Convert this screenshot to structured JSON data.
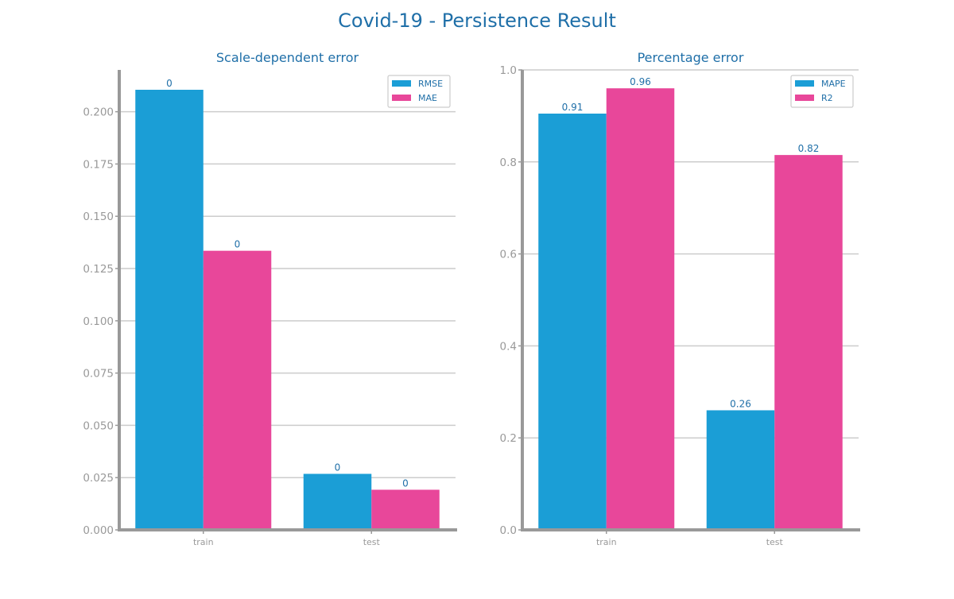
{
  "figure_title": "Covid-19 - Persistence Result",
  "colors": {
    "title": "#1f6fa8",
    "series_1": "#1b9ed6",
    "series_2": "#e8479a",
    "axis": "#999999",
    "grid": "#cccccc",
    "tick_text": "#999999",
    "value_label": "#1f6fa8"
  },
  "chart_data": [
    {
      "type": "bar",
      "title": "Scale-dependent error",
      "xlabel": "",
      "ylabel": "",
      "categories": [
        "train",
        "test"
      ],
      "series": [
        {
          "name": "RMSE",
          "values": [
            0.2105,
            0.0268
          ],
          "labels": [
            "0",
            "0"
          ]
        },
        {
          "name": "MAE",
          "values": [
            0.1335,
            0.0192
          ],
          "labels": [
            "0",
            "0"
          ]
        }
      ],
      "ylim": [
        0,
        0.22
      ],
      "yticks": [
        0.0,
        0.025,
        0.05,
        0.075,
        0.1,
        0.125,
        0.15,
        0.175,
        0.2
      ],
      "ytick_labels": [
        "0.000",
        "0.025",
        "0.050",
        "0.075",
        "0.100",
        "0.125",
        "0.150",
        "0.175",
        "0.200"
      ],
      "grid": true,
      "legend": "top-right"
    },
    {
      "type": "bar",
      "title": "Percentage error",
      "xlabel": "",
      "ylabel": "",
      "categories": [
        "train",
        "test"
      ],
      "series": [
        {
          "name": "MAPE",
          "values": [
            0.905,
            0.26
          ],
          "labels": [
            "0.91",
            "0.26"
          ]
        },
        {
          "name": "R2",
          "values": [
            0.96,
            0.815
          ],
          "labels": [
            "0.96",
            "0.82"
          ]
        }
      ],
      "ylim": [
        0,
        1.0
      ],
      "yticks": [
        0.0,
        0.2,
        0.4,
        0.6,
        0.8,
        1.0
      ],
      "ytick_labels": [
        "0.0",
        "0.2",
        "0.4",
        "0.6",
        "0.8",
        "1.0"
      ],
      "grid": true,
      "legend": "top-right"
    }
  ]
}
